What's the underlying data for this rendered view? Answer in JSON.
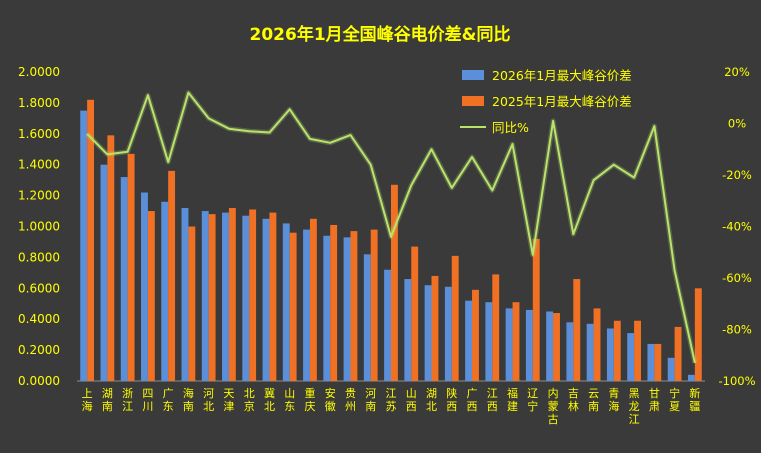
{
  "chart_data": {
    "type": "bar",
    "title": "2026年1月全国峰谷电价差&同比",
    "categories": [
      "上海",
      "湖南",
      "浙江",
      "四川",
      "广东",
      "海南",
      "河北",
      "天津",
      "北京",
      "冀北",
      "山东",
      "重庆",
      "安徽",
      "贵州",
      "河南",
      "江苏",
      "山西",
      "湖北",
      "陕西",
      "广西",
      "江西",
      "福建",
      "辽宁",
      "内蒙古",
      "吉林",
      "云南",
      "青海",
      "黑龙江",
      "甘肃",
      "宁夏",
      "新疆"
    ],
    "series": [
      {
        "name": "2026年1月最大峰谷价差",
        "color": "#5B8FD9",
        "axis": "left",
        "values": [
          1.75,
          1.4,
          1.32,
          1.22,
          1.16,
          1.12,
          1.1,
          1.09,
          1.07,
          1.05,
          1.02,
          0.98,
          0.94,
          0.93,
          0.82,
          0.72,
          0.66,
          0.62,
          0.61,
          0.52,
          0.51,
          0.47,
          0.46,
          0.45,
          0.38,
          0.37,
          0.34,
          0.31,
          0.24,
          0.15,
          0.04
        ]
      },
      {
        "name": "2025年1月最大峰谷价差",
        "color": "#F07124",
        "axis": "left",
        "values": [
          1.82,
          1.59,
          1.47,
          1.1,
          1.36,
          1.0,
          1.08,
          1.12,
          1.11,
          1.09,
          0.96,
          1.05,
          1.01,
          0.97,
          0.98,
          1.27,
          0.87,
          0.68,
          0.81,
          0.59,
          0.69,
          0.51,
          0.92,
          0.44,
          0.66,
          0.47,
          0.39,
          0.39,
          0.24,
          0.35,
          0.6
        ]
      },
      {
        "name": "同比%",
        "color": "#B9E36B",
        "type": "line",
        "axis": "right",
        "values": [
          -4,
          -12,
          -11,
          11,
          -15,
          12,
          2,
          -2,
          -3,
          -3.5,
          5.5,
          -6,
          -7.5,
          -4.5,
          -16,
          -44,
          -24,
          -10,
          -25,
          -13,
          -26,
          -8,
          -51,
          1,
          -43,
          -22,
          -16,
          -21,
          -1,
          -57,
          -93
        ]
      }
    ],
    "ylim": [
      0,
      2
    ],
    "yticks": [
      "0.0000",
      "0.2000",
      "0.4000",
      "0.6000",
      "0.8000",
      "1.0000",
      "1.2000",
      "1.4000",
      "1.6000",
      "1.8000",
      "2.0000"
    ],
    "y2lim": [
      -100,
      20
    ],
    "y2ticks": [
      "-100%",
      "-80%",
      "-60%",
      "-40%",
      "-20%",
      "0%",
      "20%"
    ],
    "legend_position": "top-right",
    "grid": false
  }
}
